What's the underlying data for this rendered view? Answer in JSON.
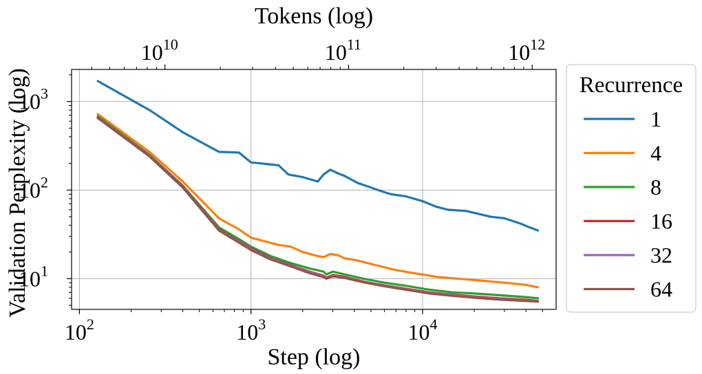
{
  "chart_data": {
    "type": "line",
    "title": "",
    "xlabel": "Step (log)",
    "ylabel": "Validation Perplexity (log)",
    "x2label": "Tokens (log)",
    "xscale": "log",
    "yscale": "log",
    "xlim": [
      90,
      60000
    ],
    "ylim": [
      4.5,
      2300
    ],
    "x2lim": [
      3100000000,
      1350000000000
    ],
    "grid": true,
    "x_ticks": [
      {
        "value": 100,
        "base": "10",
        "exp": "2"
      },
      {
        "value": 1000,
        "base": "10",
        "exp": "3"
      },
      {
        "value": 10000,
        "base": "10",
        "exp": "4"
      }
    ],
    "y_ticks": [
      {
        "value": 10,
        "base": "10",
        "exp": "1"
      },
      {
        "value": 100,
        "base": "10",
        "exp": "2"
      },
      {
        "value": 1000,
        "base": "10",
        "exp": "3"
      }
    ],
    "x2_ticks": [
      {
        "value": 10000000000,
        "base": "10",
        "exp": "10"
      },
      {
        "value": 100000000000,
        "base": "10",
        "exp": "11"
      },
      {
        "value": 1000000000000,
        "base": "10",
        "exp": "12"
      }
    ],
    "legend": {
      "title": "Recurrence",
      "placement": "outside-right"
    },
    "series": [
      {
        "name": "1",
        "color": "#1f77b4",
        "x": [
          128,
          256,
          400,
          650,
          850,
          1000,
          1150,
          1450,
          1650,
          2000,
          2450,
          2650,
          2900,
          3200,
          3500,
          4200,
          4800,
          5500,
          6500,
          8000,
          10000,
          12000,
          14000,
          18000,
          25000,
          30000,
          37000,
          42000,
          47000
        ],
        "y": [
          1700,
          800,
          450,
          270,
          265,
          205,
          200,
          190,
          150,
          140,
          125,
          150,
          170,
          155,
          145,
          120,
          110,
          100,
          90,
          85,
          75,
          65,
          60,
          58,
          50,
          48,
          42,
          38,
          35
        ]
      },
      {
        "name": "4",
        "color": "#ff7f0e",
        "x": [
          128,
          256,
          400,
          650,
          850,
          1000,
          1150,
          1450,
          1700,
          2000,
          2450,
          2650,
          2900,
          3200,
          3500,
          4200,
          5500,
          7000,
          9000,
          12000,
          16000,
          22000,
          30000,
          40000,
          47000
        ],
        "y": [
          720,
          270,
          125,
          48,
          36,
          29,
          27,
          24,
          23,
          20,
          18,
          17.5,
          19,
          18.5,
          17,
          16,
          14,
          12.5,
          11.5,
          10.5,
          10,
          9.5,
          9,
          8.5,
          8
        ]
      },
      {
        "name": "8",
        "color": "#2ca02c",
        "x": [
          128,
          256,
          400,
          650,
          850,
          1000,
          1300,
          1700,
          2200,
          2650,
          2750,
          3000,
          3500,
          4500,
          6000,
          8000,
          11000,
          15000,
          20000,
          28000,
          40000,
          47000
        ],
        "y": [
          680,
          250,
          112,
          38,
          28,
          23,
          18,
          15,
          13,
          12,
          11.2,
          12,
          11.2,
          10,
          9,
          8.3,
          7.5,
          7,
          6.8,
          6.5,
          6.2,
          6
        ]
      },
      {
        "name": "16",
        "color": "#d62728",
        "x": [
          128,
          256,
          400,
          650,
          850,
          1000,
          1300,
          1700,
          2200,
          2650,
          2750,
          3000,
          3500,
          4500,
          6000,
          8000,
          11000,
          15000,
          20000,
          28000,
          40000,
          47000
        ],
        "y": [
          660,
          245,
          110,
          36,
          26.5,
          22,
          17,
          14.2,
          12,
          10.8,
          10.3,
          11,
          10.5,
          9.3,
          8.4,
          7.7,
          7,
          6.6,
          6.3,
          6,
          5.8,
          5.6
        ]
      },
      {
        "name": "32",
        "color": "#9467bd",
        "x": [
          128,
          256,
          400,
          650,
          850,
          1000,
          1300,
          1700,
          2200,
          2650,
          2750,
          3000,
          3500,
          4500,
          6000,
          8000,
          11000,
          15000,
          20000,
          28000,
          40000,
          47000
        ],
        "y": [
          655,
          243,
          108,
          35.5,
          26,
          21.5,
          16.8,
          14,
          11.8,
          10.6,
          10.1,
          10.8,
          10.3,
          9.2,
          8.3,
          7.6,
          6.9,
          6.5,
          6.2,
          5.9,
          5.7,
          5.55
        ]
      },
      {
        "name": "64",
        "color": "#8c564b",
        "x": [
          128,
          256,
          400,
          650,
          850,
          1000,
          1300,
          1700,
          2200,
          2650,
          2750,
          3000,
          3500,
          4500,
          6000,
          8000,
          11000,
          15000,
          20000,
          28000,
          40000,
          47000
        ],
        "y": [
          650,
          240,
          107,
          35,
          25.5,
          21,
          16.5,
          13.8,
          11.5,
          10.4,
          10,
          10.6,
          10.2,
          9.1,
          8.2,
          7.5,
          6.8,
          6.4,
          6.1,
          5.8,
          5.6,
          5.5
        ]
      }
    ]
  }
}
